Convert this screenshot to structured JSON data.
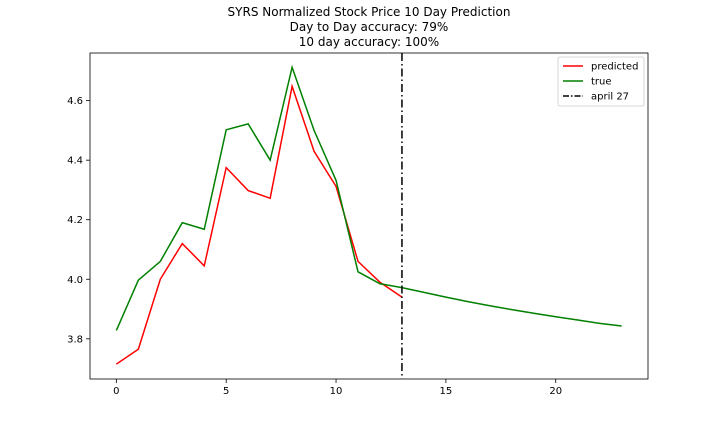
{
  "chart_data": {
    "type": "line",
    "title_lines": [
      "SYRS Normalized Stock Price 10 Day Prediction",
      "Day to Day accuracy: 79%",
      "10 day accuracy: 100%"
    ],
    "xlabel": "",
    "ylabel": "",
    "xlim": [
      -1.2,
      24.2
    ],
    "ylim": [
      3.665,
      4.76
    ],
    "xticks": [
      0,
      5,
      10,
      15,
      20
    ],
    "yticks": [
      3.8,
      4.0,
      4.2,
      4.4,
      4.6
    ],
    "ytick_labels": [
      "3.8",
      "4.0",
      "4.2",
      "4.4",
      "4.6"
    ],
    "grid": false,
    "legend_position": "top-right",
    "series": [
      {
        "name": "predicted",
        "color": "#ff0000",
        "style": "solid",
        "x": [
          0,
          1,
          2,
          3,
          4,
          5,
          6,
          7,
          8,
          9,
          10,
          11,
          12,
          13
        ],
        "y": [
          3.715,
          3.765,
          4.0,
          4.12,
          4.045,
          4.375,
          4.298,
          4.272,
          4.648,
          4.43,
          4.312,
          4.06,
          3.99,
          3.94
        ]
      },
      {
        "name": "true",
        "color": "#008000",
        "style": "solid",
        "x": [
          0,
          1,
          2,
          3,
          4,
          5,
          6,
          7,
          8,
          9,
          10,
          11,
          12,
          13,
          14,
          15,
          16,
          17,
          18,
          19,
          20,
          21,
          22,
          23
        ],
        "y": [
          3.828,
          3.997,
          4.06,
          4.19,
          4.168,
          4.502,
          4.522,
          4.4,
          4.712,
          4.5,
          4.332,
          4.025,
          3.985,
          3.972,
          3.956,
          3.94,
          3.925,
          3.911,
          3.898,
          3.886,
          3.874,
          3.863,
          3.852,
          3.843
        ]
      }
    ],
    "vline": {
      "name": "april 27",
      "x": 13,
      "color": "#000000",
      "style": "dashdot"
    }
  }
}
